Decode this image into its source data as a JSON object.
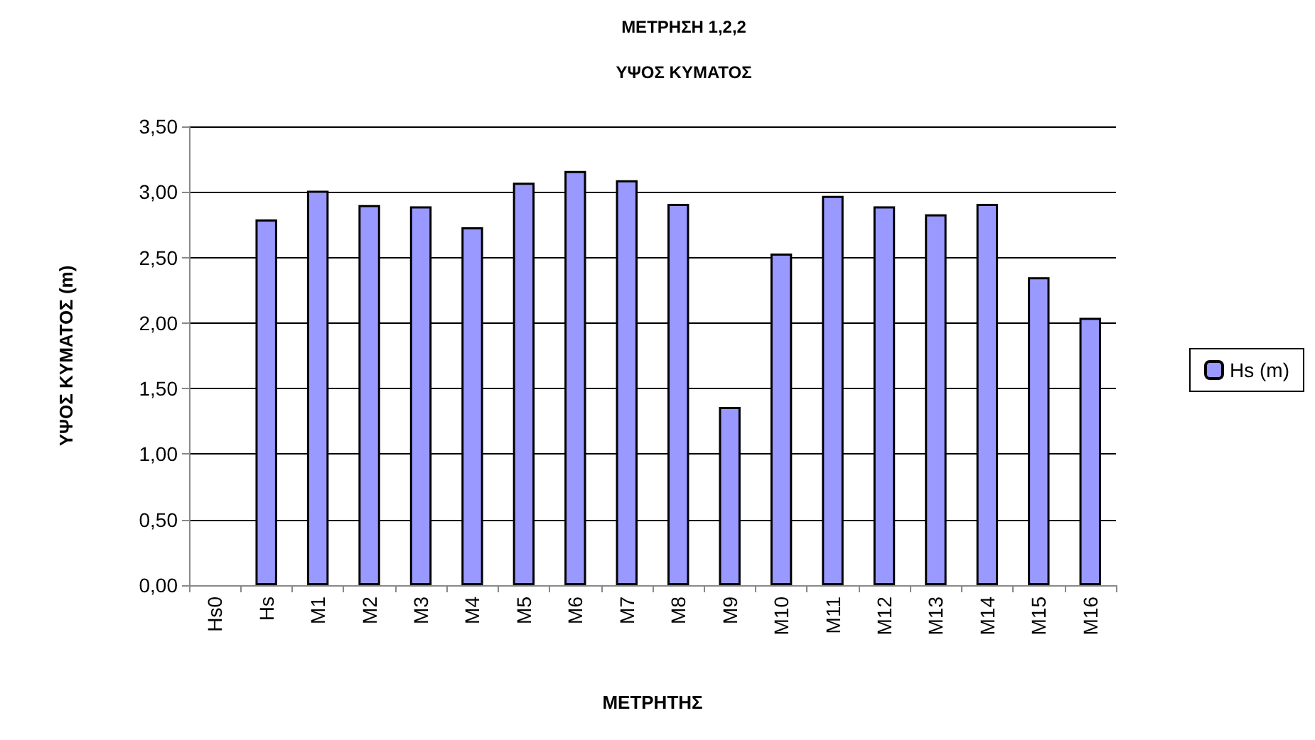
{
  "chart_data": {
    "type": "bar",
    "title": "ΜΕΤΡΗΣΗ 1,2,2",
    "subtitle": "ΥΨΟΣ ΚΥΜΑΤΟΣ",
    "xlabel": "ΜΕΤΡΗΤΗΣ",
    "ylabel": "ΥΨΟΣ ΚΥΜΑΤΟΣ (m)",
    "categories": [
      "Hs0",
      "Hs",
      "M1",
      "M2",
      "M3",
      "M4",
      "M5",
      "M6",
      "M7",
      "M8",
      "M9",
      "M10",
      "M11",
      "M12",
      "M13",
      "M14",
      "M15",
      "M16"
    ],
    "series": [
      {
        "name": "Hs (m)",
        "color": "#9999ff",
        "values": [
          null,
          2.79,
          3.01,
          2.9,
          2.89,
          2.73,
          3.07,
          3.16,
          3.09,
          2.91,
          1.36,
          2.53,
          2.97,
          2.89,
          2.83,
          2.91,
          2.35,
          2.04
        ]
      }
    ],
    "ylim": [
      0,
      3.5
    ],
    "yticks": [
      {
        "value": 0,
        "label": "0,00"
      },
      {
        "value": 0.5,
        "label": "0,50"
      },
      {
        "value": 1,
        "label": "1,00"
      },
      {
        "value": 1.5,
        "label": "1,50"
      },
      {
        "value": 2,
        "label": "2,00"
      },
      {
        "value": 2.5,
        "label": "2,50"
      },
      {
        "value": 3,
        "label": "3,00"
      },
      {
        "value": 3.5,
        "label": "3,50"
      }
    ],
    "grid": "y",
    "legend": "right"
  }
}
